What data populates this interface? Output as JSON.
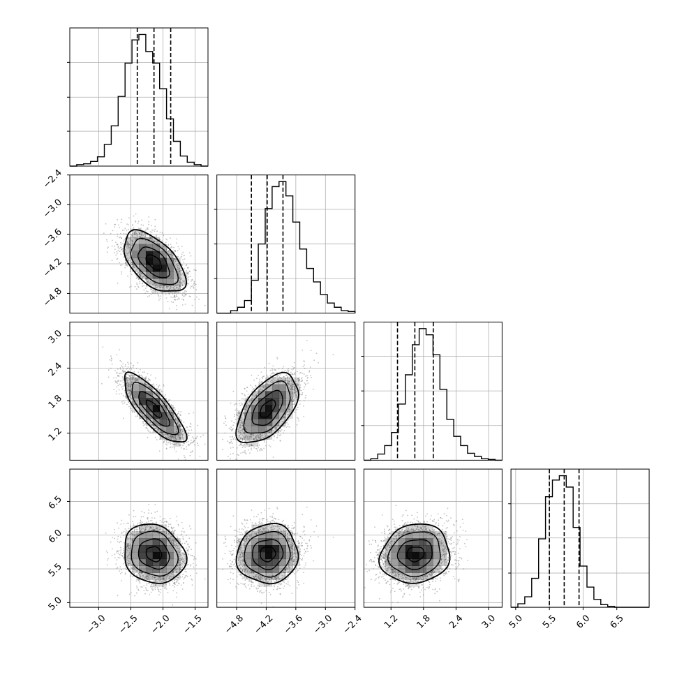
{
  "chart_data": {
    "type": "corner",
    "title": "",
    "params": [
      {
        "range": [
          -3.45,
          -1.3
        ],
        "ticks": [
          -3.0,
          -2.5,
          -2.0,
          -1.5
        ],
        "tick_labels": [
          "−3.0",
          "−2.5",
          "−2.0",
          "−1.5"
        ],
        "quantiles": [
          -2.4,
          -2.14,
          -1.88
        ],
        "mean": -2.14,
        "sd": 0.24
      },
      {
        "range": [
          -5.2,
          -2.4
        ],
        "ticks": [
          -4.8,
          -4.2,
          -3.6,
          -3.0,
          -2.4
        ],
        "tick_labels": [
          "−4.8",
          "−4.2",
          "−3.6",
          "−3.0",
          "−2.4"
        ],
        "quantiles": [
          -4.5,
          -4.18,
          -3.86
        ],
        "mean": -4.17,
        "sd": 0.31
      },
      {
        "range": [
          0.7,
          3.25
        ],
        "ticks": [
          1.2,
          1.8,
          2.4,
          3.0
        ],
        "tick_labels": [
          "1.2",
          "1.8",
          "2.4",
          "3.0"
        ],
        "quantiles": [
          1.32,
          1.64,
          1.98
        ],
        "mean": 1.65,
        "sd": 0.32
      },
      {
        "range": [
          4.93,
          6.98
        ],
        "ticks": [
          5.0,
          5.5,
          6.0,
          6.5
        ],
        "tick_labels": [
          "5.0",
          "5.5",
          "6.0",
          "6.5"
        ],
        "quantiles": [
          5.5,
          5.72,
          5.94
        ],
        "mean": 5.72,
        "sd": 0.22
      }
    ],
    "histograms": [
      {
        "counts": [
          0,
          2,
          3,
          6,
          12,
          28,
          52,
          90,
          133,
          163,
          170,
          148,
          133,
          100,
          61,
          32,
          13,
          5,
          2,
          0
        ]
      },
      {
        "counts": [
          0,
          0,
          3,
          7,
          15,
          39,
          82,
          124,
          150,
          156,
          139,
          108,
          76,
          53,
          37,
          22,
          12,
          7,
          3,
          2
        ]
      },
      {
        "counts": [
          0,
          2,
          8,
          19,
          36,
          73,
          111,
          150,
          171,
          163,
          137,
          92,
          53,
          31,
          19,
          9,
          5,
          2,
          1,
          0
        ]
      },
      {
        "counts": [
          0,
          4,
          12,
          33,
          78,
          126,
          145,
          150,
          137,
          91,
          47,
          23,
          9,
          3,
          1,
          0,
          0,
          0,
          0,
          0
        ]
      }
    ],
    "correlations": [
      {
        "x": 0,
        "y": 1,
        "rho": -0.55
      },
      {
        "x": 0,
        "y": 2,
        "rho": -0.8
      },
      {
        "x": 1,
        "y": 2,
        "rho": 0.55
      },
      {
        "x": 0,
        "y": 3,
        "rho": -0.15
      },
      {
        "x": 1,
        "y": 3,
        "rho": 0.05
      },
      {
        "x": 2,
        "y": 3,
        "rho": 0.1
      }
    ],
    "contour_levels_sigma": [
      0.5,
      1.0,
      1.5,
      2.0
    ],
    "grid": true,
    "colors": {
      "line": "#000000",
      "grid": "#b0b0b0",
      "points": "#777777",
      "density": "#000000"
    }
  }
}
